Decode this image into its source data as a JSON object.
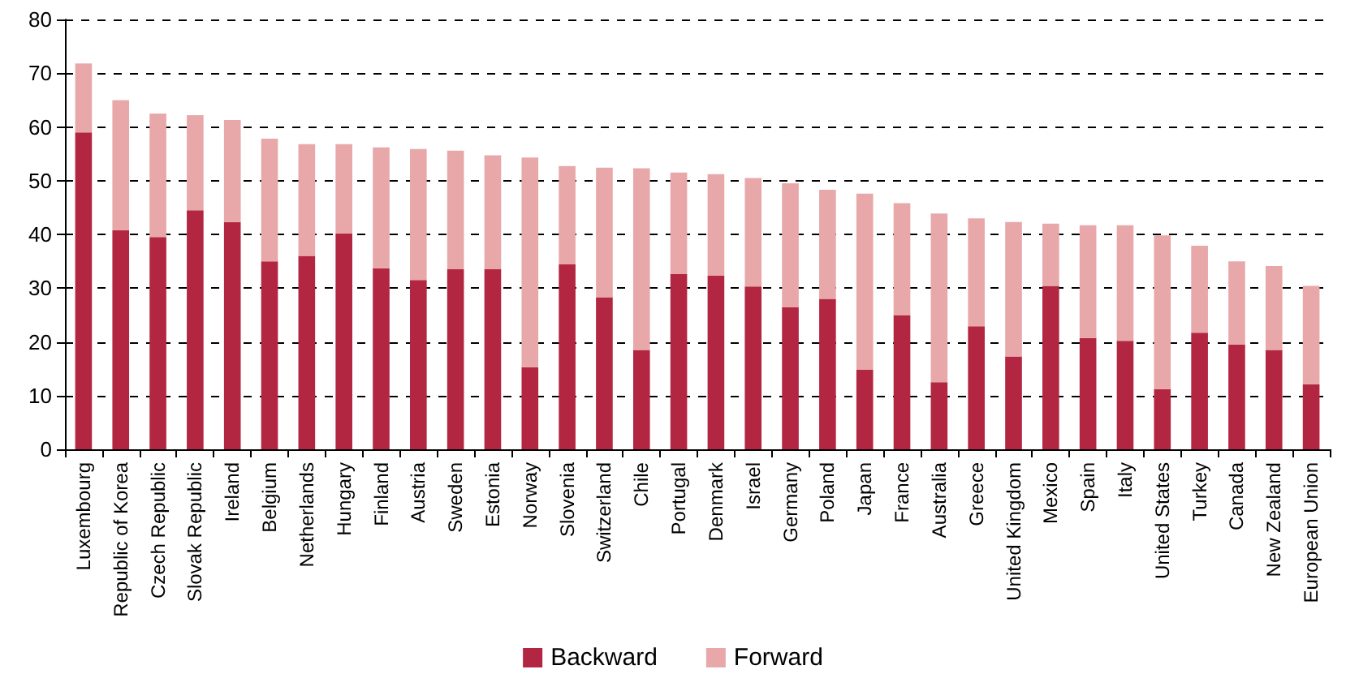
{
  "chart_data": {
    "type": "bar",
    "stacked": true,
    "categories": [
      "Luxembourg",
      "Republic of Korea",
      "Czech Republic",
      "Slovak Republic",
      "Ireland",
      "Belgium",
      "Netherlands",
      "Hungary",
      "Finland",
      "Austria",
      "Sweden",
      "Estonia",
      "Norway",
      "Slovenia",
      "Switzerland",
      "Chile",
      "Portugal",
      "Denmark",
      "Israel",
      "Germany",
      "Poland",
      "Japan",
      "France",
      "Australia",
      "Greece",
      "United Kingdom",
      "Mexico",
      "Spain",
      "Italy",
      "United States",
      "Turkey",
      "Canada",
      "New Zealand",
      "European Union"
    ],
    "series": [
      {
        "name": "Backward",
        "color": "#b22642",
        "values": [
          59,
          40.8,
          39.5,
          44.5,
          42.3,
          35,
          36,
          40.2,
          33.7,
          31.5,
          33.5,
          33.5,
          15.3,
          34.4,
          28.3,
          18.5,
          32.6,
          32.3,
          30.3,
          26.4,
          28,
          14.8,
          25,
          12.5,
          22.9,
          17.3,
          30.4,
          20.7,
          20.2,
          11.2,
          21.7,
          19.5,
          18.5,
          12.1
        ]
      },
      {
        "name": "Forward",
        "color": "#e8a8aa",
        "values": [
          12.8,
          24.2,
          23.0,
          17.7,
          19.0,
          22.8,
          20.8,
          16.6,
          22.5,
          24.4,
          22.1,
          21.2,
          39.0,
          18.3,
          24.1,
          33.8,
          18.9,
          18.9,
          20.2,
          23.1,
          20.3,
          32.8,
          20.8,
          31.4,
          20.1,
          25.0,
          11.6,
          21.0,
          21.5,
          28.6,
          16.2,
          15.5,
          15.6,
          18.3
        ]
      }
    ],
    "ylim": [
      0,
      80
    ],
    "yticks": [
      0,
      10,
      20,
      30,
      40,
      50,
      60,
      70,
      80
    ],
    "grid": "y",
    "legend": "bottom"
  }
}
